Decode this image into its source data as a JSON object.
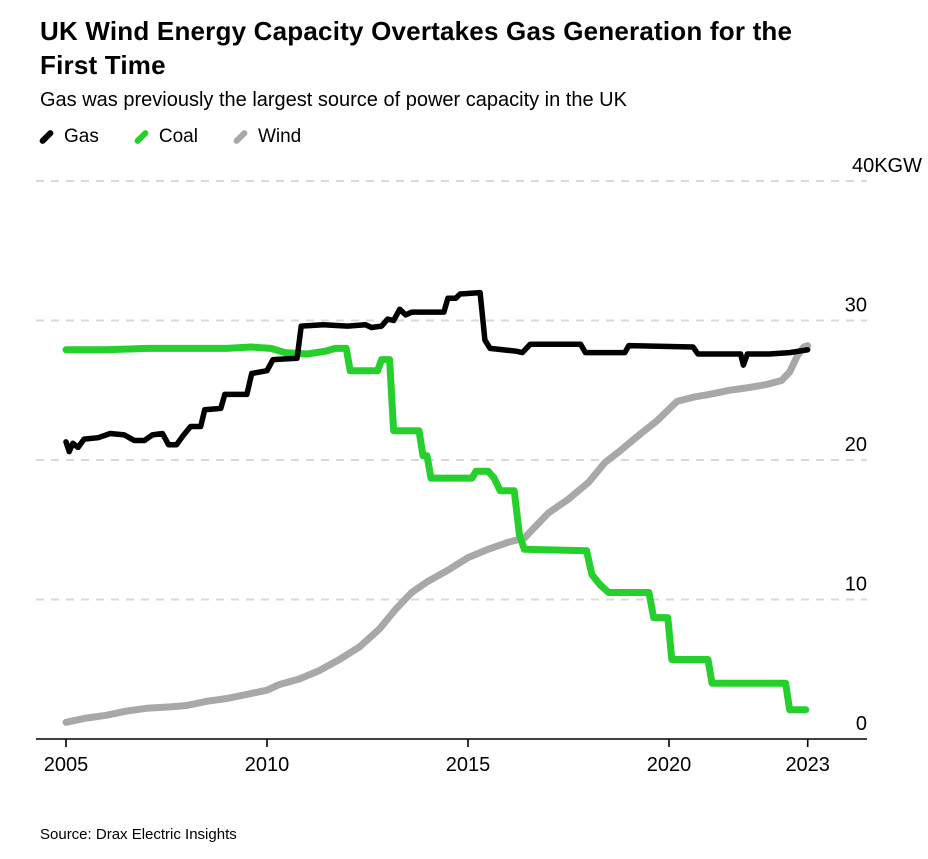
{
  "header": {
    "title_line1": "UK Wind Energy Capacity Overtakes Gas Generation for the",
    "title_line2": "First Time",
    "subtitle": "Gas was previously the largest source of power capacity in the UK"
  },
  "legend": [
    {
      "label": "Gas",
      "color": "#000000"
    },
    {
      "label": "Coal",
      "color": "#25d02d"
    },
    {
      "label": "Wind",
      "color": "#a8a8a8"
    }
  ],
  "source": "Source: Drax Electric Insights",
  "chart_data": {
    "type": "line",
    "title": "UK Wind Energy Capacity Overtakes Gas Generation for the First Time",
    "subtitle": "Gas was previously the largest source of power capacity in the UK",
    "unit": "KGW",
    "ylim": [
      0,
      40
    ],
    "xlim": [
      2005,
      2024.9
    ],
    "grid": "horizontal-dashed",
    "legend_position": "top-left",
    "yticks": [
      {
        "value": 40,
        "label": "40KGW"
      },
      {
        "value": 30,
        "label": "30"
      },
      {
        "value": 20,
        "label": "20"
      },
      {
        "value": 10,
        "label": "10"
      },
      {
        "value": 0,
        "label": "0"
      }
    ],
    "xticks": [
      {
        "label": "2005",
        "year": 2005
      },
      {
        "label": "2010",
        "year": 2010
      },
      {
        "label": "2015",
        "year": 2015
      },
      {
        "label": "2020",
        "year": 2020
      },
      {
        "label": "2023",
        "year": 2023.45
      }
    ],
    "series": [
      {
        "name": "Wind",
        "color": "#a8a8a8",
        "width": 7,
        "points": [
          [
            2005.0,
            1.2
          ],
          [
            2005.5,
            1.5
          ],
          [
            2006.0,
            1.7
          ],
          [
            2006.5,
            2.0
          ],
          [
            2007.0,
            2.2
          ],
          [
            2007.6,
            2.3
          ],
          [
            2008.0,
            2.4
          ],
          [
            2008.5,
            2.7
          ],
          [
            2009.0,
            2.9
          ],
          [
            2009.5,
            3.2
          ],
          [
            2010.0,
            3.5
          ],
          [
            2010.3,
            3.9
          ],
          [
            2010.8,
            4.3
          ],
          [
            2011.3,
            4.9
          ],
          [
            2011.8,
            5.7
          ],
          [
            2012.3,
            6.6
          ],
          [
            2012.8,
            7.9
          ],
          [
            2013.2,
            9.3
          ],
          [
            2013.6,
            10.5
          ],
          [
            2014.0,
            11.3
          ],
          [
            2014.5,
            12.1
          ],
          [
            2015.0,
            13.0
          ],
          [
            2015.5,
            13.6
          ],
          [
            2016.0,
            14.1
          ],
          [
            2016.4,
            14.4
          ],
          [
            2017.0,
            16.2
          ],
          [
            2017.5,
            17.2
          ],
          [
            2018.0,
            18.4
          ],
          [
            2018.4,
            19.8
          ],
          [
            2018.8,
            20.7
          ],
          [
            2019.3,
            21.9
          ],
          [
            2019.7,
            22.8
          ],
          [
            2020.2,
            24.2
          ],
          [
            2020.6,
            24.5
          ],
          [
            2021.0,
            24.7
          ],
          [
            2021.5,
            25.0
          ],
          [
            2022.0,
            25.2
          ],
          [
            2022.4,
            25.4
          ],
          [
            2022.8,
            25.7
          ],
          [
            2023.0,
            26.3
          ],
          [
            2023.2,
            27.5
          ],
          [
            2023.35,
            28.1
          ],
          [
            2023.45,
            28.2
          ]
        ]
      },
      {
        "name": "Coal",
        "color": "#25d02d",
        "width": 7,
        "points": [
          [
            2005.0,
            27.9
          ],
          [
            2006.0,
            27.9
          ],
          [
            2007.0,
            28.0
          ],
          [
            2008.0,
            28.0
          ],
          [
            2009.0,
            28.0
          ],
          [
            2009.6,
            28.1
          ],
          [
            2010.1,
            28.0
          ],
          [
            2010.45,
            27.7
          ],
          [
            2011.0,
            27.6
          ],
          [
            2011.45,
            27.8
          ],
          [
            2011.7,
            28.0
          ],
          [
            2011.97,
            28.0
          ],
          [
            2012.07,
            26.4
          ],
          [
            2012.75,
            26.4
          ],
          [
            2012.85,
            27.2
          ],
          [
            2013.05,
            27.2
          ],
          [
            2013.15,
            22.1
          ],
          [
            2013.78,
            22.1
          ],
          [
            2013.88,
            20.3
          ],
          [
            2013.98,
            20.3
          ],
          [
            2014.08,
            18.7
          ],
          [
            2015.1,
            18.7
          ],
          [
            2015.2,
            19.2
          ],
          [
            2015.5,
            19.2
          ],
          [
            2015.65,
            18.7
          ],
          [
            2015.8,
            17.8
          ],
          [
            2016.15,
            17.8
          ],
          [
            2016.28,
            14.6
          ],
          [
            2016.4,
            13.6
          ],
          [
            2017.95,
            13.5
          ],
          [
            2018.08,
            11.8
          ],
          [
            2018.3,
            11.0
          ],
          [
            2018.5,
            10.5
          ],
          [
            2019.5,
            10.5
          ],
          [
            2019.62,
            8.7
          ],
          [
            2019.97,
            8.7
          ],
          [
            2020.07,
            5.7
          ],
          [
            2020.97,
            5.7
          ],
          [
            2021.07,
            4.0
          ],
          [
            2022.9,
            4.0
          ],
          [
            2023.0,
            2.1
          ],
          [
            2023.4,
            2.1
          ]
        ]
      },
      {
        "name": "Gas",
        "color": "#000000",
        "width": 5.5,
        "points": [
          [
            2005.0,
            21.3
          ],
          [
            2005.08,
            20.6
          ],
          [
            2005.17,
            21.2
          ],
          [
            2005.3,
            20.9
          ],
          [
            2005.45,
            21.5
          ],
          [
            2005.8,
            21.6
          ],
          [
            2006.1,
            21.9
          ],
          [
            2006.45,
            21.8
          ],
          [
            2006.7,
            21.4
          ],
          [
            2006.95,
            21.4
          ],
          [
            2007.15,
            21.8
          ],
          [
            2007.4,
            21.9
          ],
          [
            2007.55,
            21.1
          ],
          [
            2007.75,
            21.1
          ],
          [
            2007.9,
            21.7
          ],
          [
            2008.1,
            22.4
          ],
          [
            2008.35,
            22.4
          ],
          [
            2008.45,
            23.6
          ],
          [
            2008.85,
            23.7
          ],
          [
            2008.95,
            24.7
          ],
          [
            2009.5,
            24.7
          ],
          [
            2009.62,
            26.2
          ],
          [
            2010.0,
            26.4
          ],
          [
            2010.15,
            27.2
          ],
          [
            2010.75,
            27.3
          ],
          [
            2010.85,
            29.6
          ],
          [
            2011.4,
            29.7
          ],
          [
            2012.0,
            29.6
          ],
          [
            2012.45,
            29.7
          ],
          [
            2012.6,
            29.5
          ],
          [
            2012.85,
            29.6
          ],
          [
            2013.0,
            30.1
          ],
          [
            2013.15,
            30.0
          ],
          [
            2013.3,
            30.8
          ],
          [
            2013.45,
            30.4
          ],
          [
            2013.6,
            30.6
          ],
          [
            2014.4,
            30.6
          ],
          [
            2014.5,
            31.6
          ],
          [
            2014.7,
            31.6
          ],
          [
            2014.8,
            31.9
          ],
          [
            2015.3,
            32.0
          ],
          [
            2015.42,
            28.6
          ],
          [
            2015.55,
            28.0
          ],
          [
            2016.2,
            27.8
          ],
          [
            2016.35,
            27.7
          ],
          [
            2016.55,
            28.3
          ],
          [
            2017.8,
            28.3
          ],
          [
            2017.92,
            27.7
          ],
          [
            2018.9,
            27.7
          ],
          [
            2019.0,
            28.2
          ],
          [
            2020.6,
            28.1
          ],
          [
            2020.72,
            27.6
          ],
          [
            2021.78,
            27.6
          ],
          [
            2021.85,
            26.8
          ],
          [
            2021.95,
            27.6
          ],
          [
            2022.5,
            27.6
          ],
          [
            2023.0,
            27.7
          ],
          [
            2023.45,
            27.9
          ]
        ]
      }
    ]
  }
}
